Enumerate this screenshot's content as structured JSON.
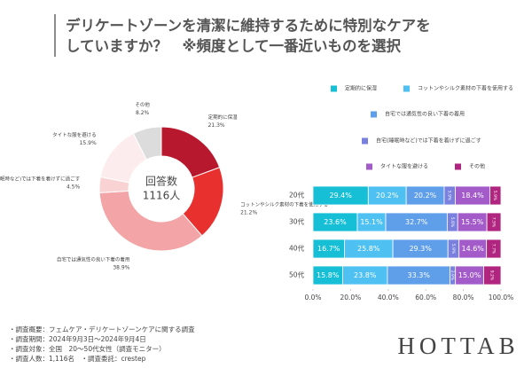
{
  "header": {
    "title_lines": [
      "デリケートゾーンを清潔に維持するために特別なケアを",
      "していますか？　※頻度として一番近いものを選択"
    ]
  },
  "chart_data": [
    {
      "type": "pie",
      "center_label": [
        "回答数",
        "1116人"
      ],
      "categories": [
        "定期的に保湿",
        "コットンやシルク素材の下着を使用する",
        "自宅では通気性の良い下着の着用",
        "自宅(睡眠時など)では下着を着けずに過ごす",
        "タイトな服を避ける",
        "その他"
      ],
      "values": [
        21.3,
        21.2,
        38.9,
        4.5,
        15.9,
        8.2
      ],
      "value_labels": [
        "21.3%",
        "21.2%",
        "38.9%",
        "4.5%",
        "15.9%",
        "8.2%"
      ],
      "colors": [
        "#b8182e",
        "#e8302f",
        "#f3a4a6",
        "#f9d3d4",
        "#fdeced",
        "#dcdcdc"
      ]
    },
    {
      "type": "bar",
      "orientation": "horizontal",
      "stacked": true,
      "categories": [
        "20代",
        "30代",
        "40代",
        "50代"
      ],
      "series": [
        {
          "name": "定期的に保湿",
          "color": "#16bfd6",
          "values": [
            29.4,
            23.6,
            16.7,
            15.8
          ],
          "value_labels": [
            "29.4%",
            "23.6%",
            "16.7%",
            "15.8%"
          ]
        },
        {
          "name": "コットンやシルク素材の下着を使用する",
          "color": "#4ec0f2",
          "values": [
            20.2,
            15.1,
            25.8,
            23.8
          ],
          "value_labels": [
            "20.2%",
            "15.1%",
            "25.8%",
            "23.8%"
          ]
        },
        {
          "name": "自宅では通気性の良い下着の着用",
          "color": "#5f9ee8",
          "values": [
            20.2,
            32.7,
            29.3,
            33.3
          ],
          "value_labels": [
            "20.2%",
            "32.7%",
            "29.3%",
            "33.3%"
          ]
        },
        {
          "name": "自宅(睡眠時など)では下着を着けずに過ごす",
          "color": "#7a80de",
          "values": [
            5.9,
            5.6,
            5.9,
            2.9
          ],
          "value_labels": [
            "5.9%",
            "5.6%",
            "5.9%",
            "2.9%"
          ]
        },
        {
          "name": "タイトな服を避ける",
          "color": "#a25bc9",
          "values": [
            18.4,
            15.5,
            14.6,
            15.0
          ],
          "value_labels": [
            "18.4%",
            "15.5%",
            "14.6%",
            "15.0%"
          ]
        },
        {
          "name": "その他",
          "color": "#b0257f",
          "values": [
            5.9,
            7.5,
            7.7,
            9.2
          ],
          "value_labels": [
            "5.9%",
            "7.5%",
            "7.7%",
            "9.2%"
          ]
        }
      ],
      "xlim": [
        0,
        100
      ],
      "xticks": [
        {
          "value": 0,
          "label": "0.0%"
        },
        {
          "value": 20,
          "label": "20.0%"
        },
        {
          "value": 40,
          "label": "40.0%"
        },
        {
          "value": 60,
          "label": "60.0%"
        },
        {
          "value": 80,
          "label": "80.0%"
        },
        {
          "value": 100,
          "label": "100.0%"
        }
      ]
    }
  ],
  "footer": {
    "notes": [
      "・調査概要：フェムケア・デリケートゾーンケアに関する調査",
      "・調査期間：2024年9月3日～2024年9月4日",
      "・調査対象：全国　20～50代女性（調査モニター）",
      "・調査人数：1,116名　・調査委託：crestep"
    ],
    "logo": "HOTTAB"
  }
}
